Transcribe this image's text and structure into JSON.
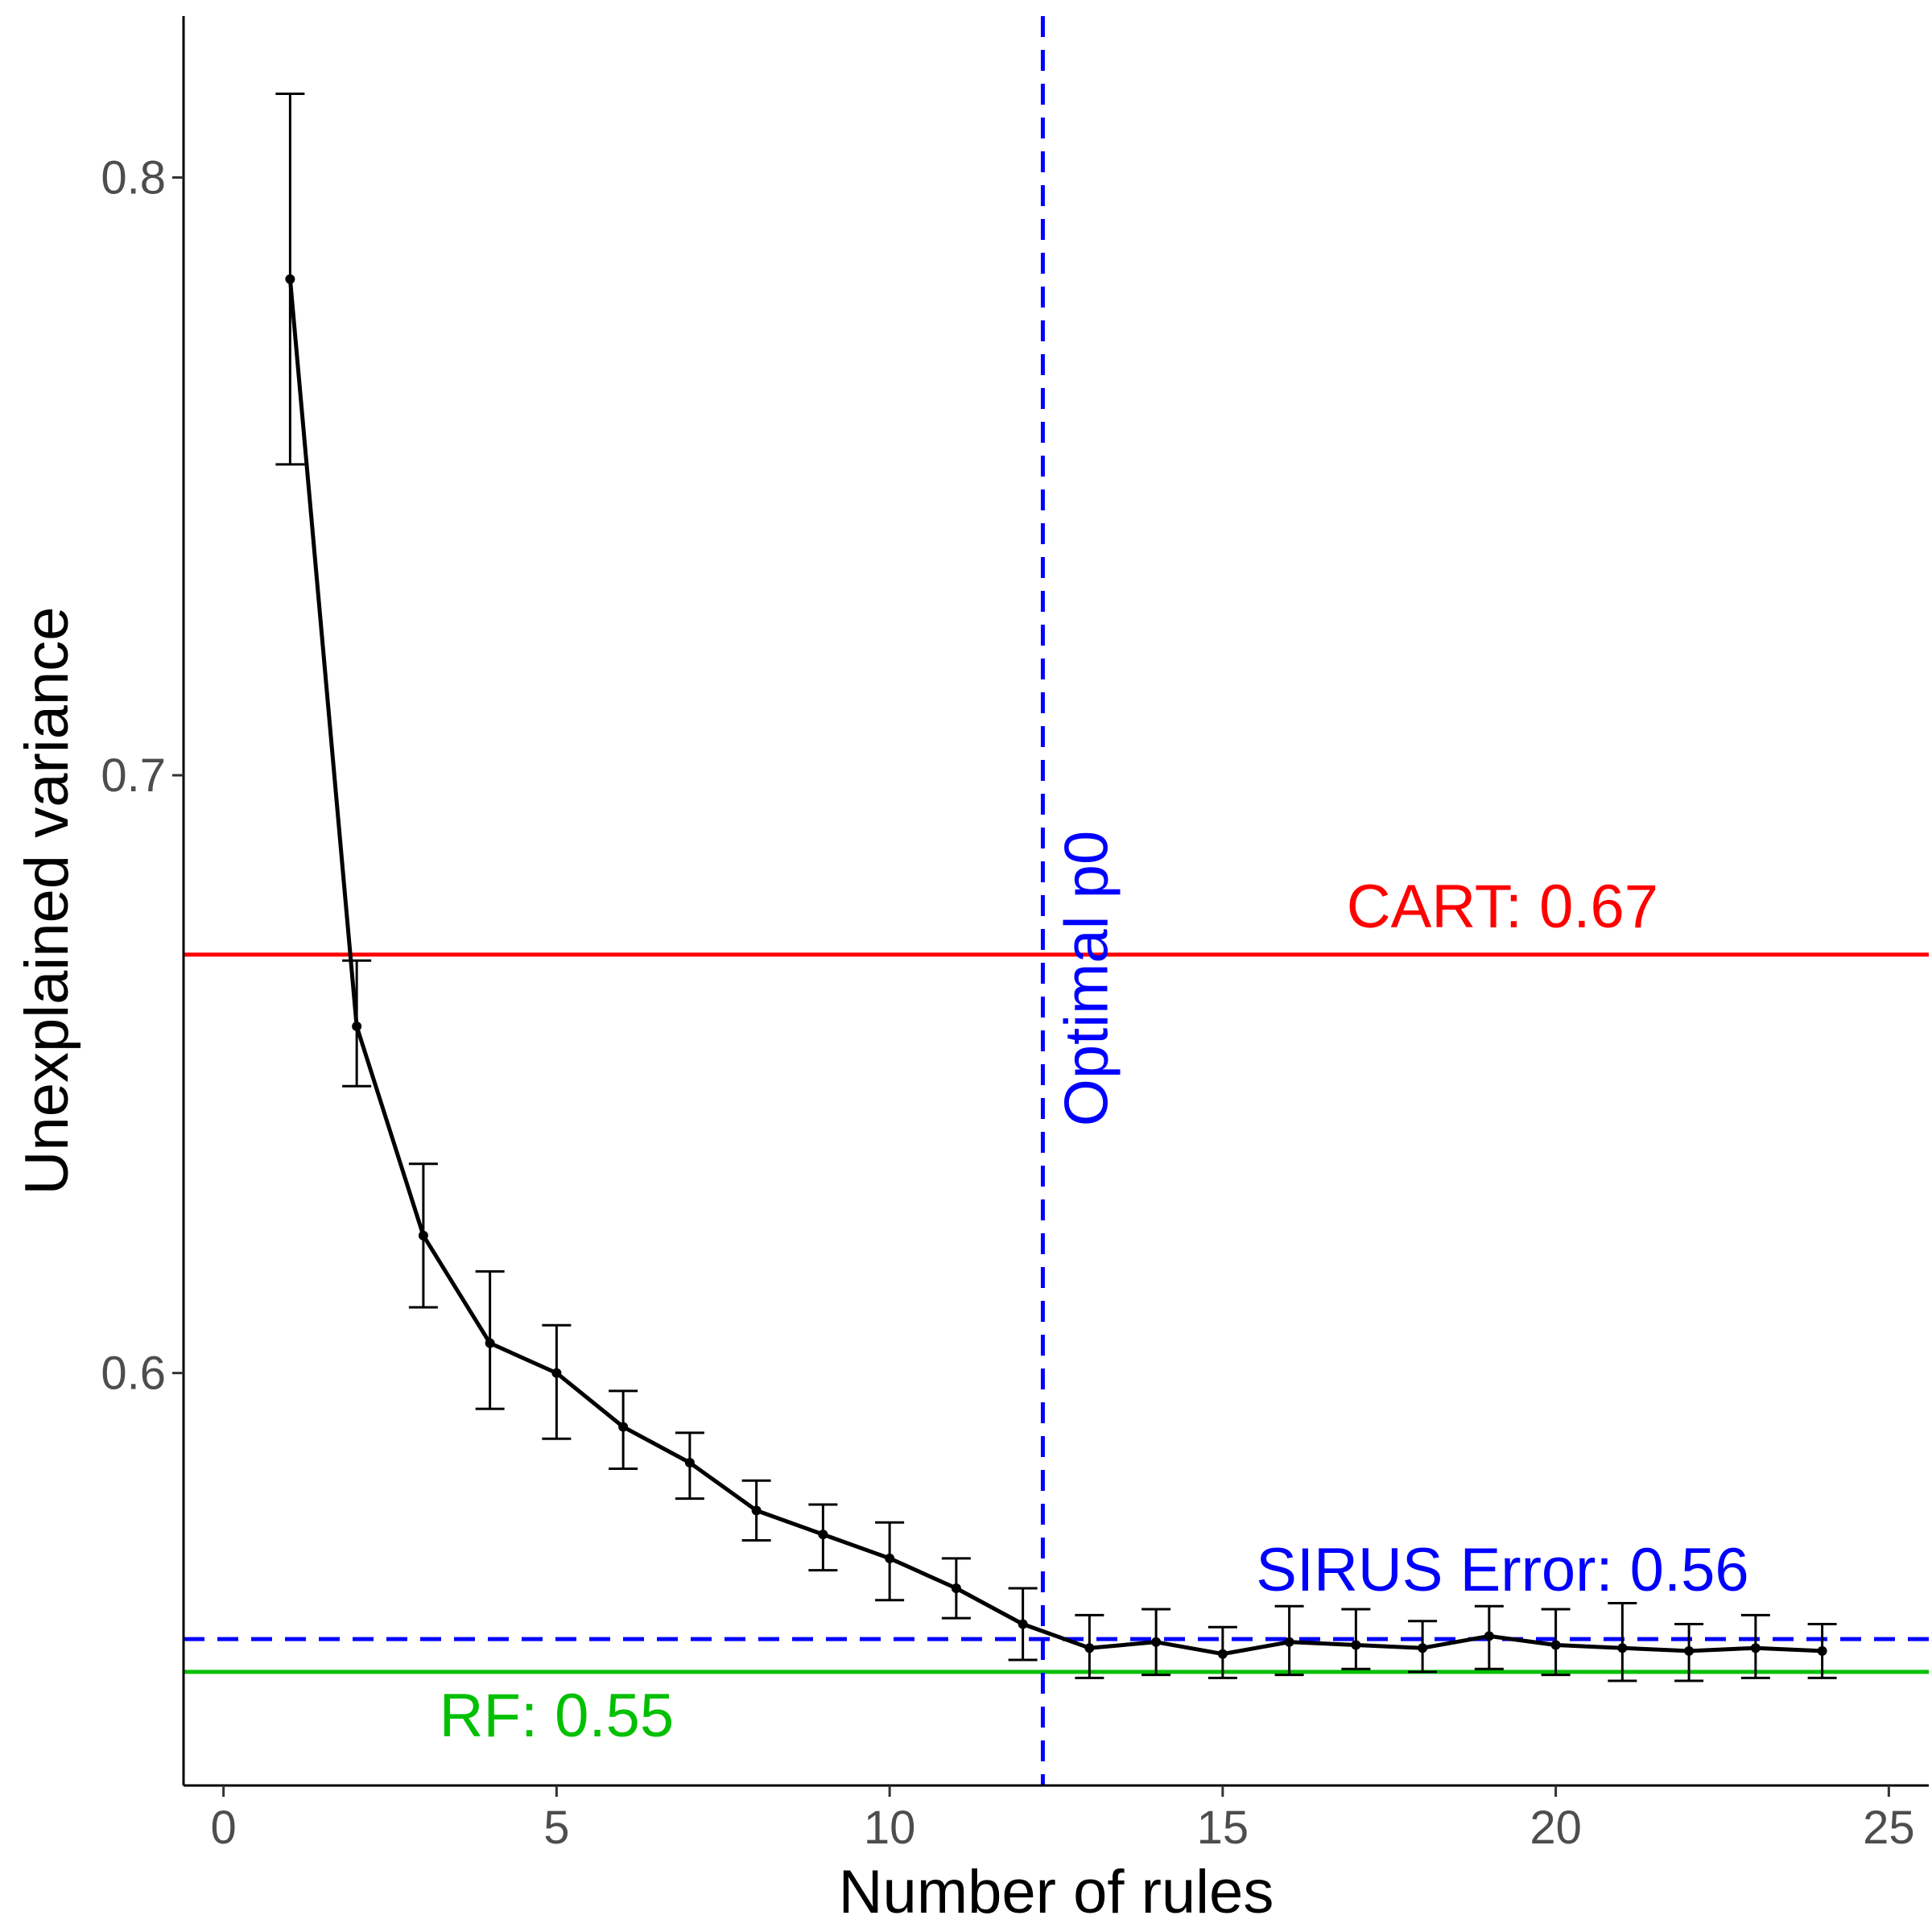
{
  "chart_data": {
    "type": "line",
    "title": "",
    "xlabel": "Number of rules",
    "ylabel": "Unexplained variance",
    "xlim": [
      -0.6,
      25.6
    ],
    "ylim": [
      0.531,
      0.827
    ],
    "xticks": [
      0,
      5,
      10,
      15,
      20,
      25
    ],
    "yticks": [
      0.6,
      0.7,
      0.8
    ],
    "grid": false,
    "legend": "none",
    "series": [
      {
        "color": "#000000",
        "x": [
          1,
          2,
          3,
          4,
          5,
          6,
          7,
          8,
          9,
          10,
          11,
          12,
          13,
          14,
          15,
          16,
          17,
          18,
          19,
          20,
          21,
          22,
          23,
          24
        ],
        "y": [
          0.783,
          0.658,
          0.623,
          0.605,
          0.6,
          0.591,
          0.585,
          0.577,
          0.573,
          0.569,
          0.564,
          0.558,
          0.554,
          0.555,
          0.553,
          0.555,
          0.5545,
          0.554,
          0.556,
          0.5545,
          0.554,
          0.5535,
          0.554,
          0.5535
        ],
        "y_low": [
          0.752,
          0.648,
          0.611,
          0.594,
          0.589,
          0.584,
          0.579,
          0.572,
          0.567,
          0.562,
          0.559,
          0.552,
          0.549,
          0.5495,
          0.549,
          0.5495,
          0.5505,
          0.55,
          0.5505,
          0.5495,
          0.5485,
          0.5485,
          0.549,
          0.549
        ],
        "y_high": [
          0.814,
          0.669,
          0.635,
          0.617,
          0.608,
          0.597,
          0.59,
          0.582,
          0.578,
          0.575,
          0.569,
          0.564,
          0.5595,
          0.5605,
          0.5575,
          0.561,
          0.5605,
          0.5585,
          0.561,
          0.5605,
          0.5615,
          0.558,
          0.5595,
          0.558
        ]
      }
    ],
    "hlines": [
      {
        "y": 0.67,
        "color": "#ff0000",
        "style": "solid",
        "label": "CART: 0.67"
      },
      {
        "y": 0.5555,
        "color": "#0000ff",
        "style": "dashed",
        "label": "SIRUS Error: 0.56"
      },
      {
        "y": 0.55,
        "color": "#00c000",
        "style": "solid",
        "label": "RF: 0.55"
      }
    ],
    "vline": {
      "x": 12.3,
      "color": "#0000ff",
      "style": "dashed",
      "label": "Optimal p0"
    }
  }
}
